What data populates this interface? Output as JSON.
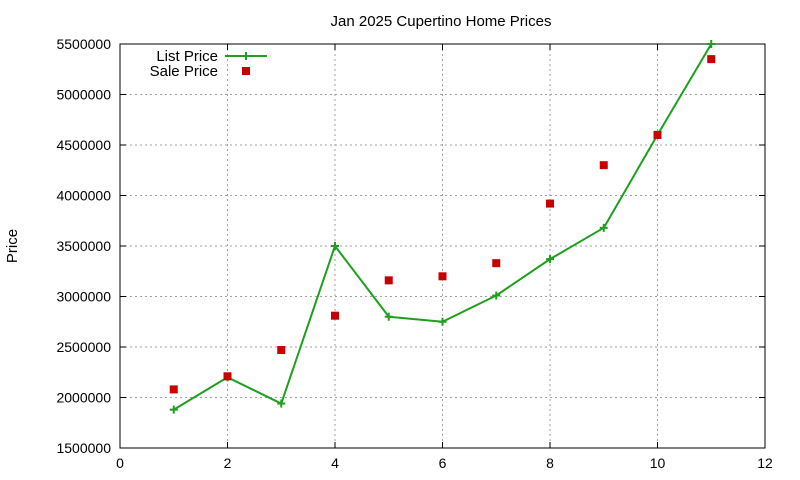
{
  "chart_data": {
    "type": "line",
    "title": "Jan 2025 Cupertino Home Prices",
    "xlabel": "",
    "ylabel": "Price",
    "xlim": [
      0,
      12
    ],
    "ylim": [
      1500000,
      5500000
    ],
    "x_ticks": [
      0,
      2,
      4,
      6,
      8,
      10,
      12
    ],
    "y_ticks": [
      1500000,
      2000000,
      2500000,
      3000000,
      3500000,
      4000000,
      4500000,
      5000000,
      5500000
    ],
    "grid": true,
    "legend_position": "top-left",
    "series": [
      {
        "name": "List Price",
        "style": "lines+points",
        "marker": "plus",
        "color": "#1ea01e",
        "x": [
          1,
          2,
          3,
          4,
          5,
          6,
          7,
          8,
          9,
          10,
          11
        ],
        "y": [
          1880000,
          2200000,
          1940000,
          3500000,
          2800000,
          2750000,
          3010000,
          3370000,
          3680000,
          4600000,
          5500000
        ]
      },
      {
        "name": "Sale Price",
        "style": "points",
        "marker": "square",
        "color": "#c80000",
        "x": [
          1,
          2,
          3,
          4,
          5,
          6,
          7,
          8,
          9,
          10,
          11
        ],
        "y": [
          2080000,
          2210000,
          2470000,
          2810000,
          3160000,
          3200000,
          3330000,
          3920000,
          4300000,
          4600000,
          5350000
        ]
      }
    ]
  }
}
